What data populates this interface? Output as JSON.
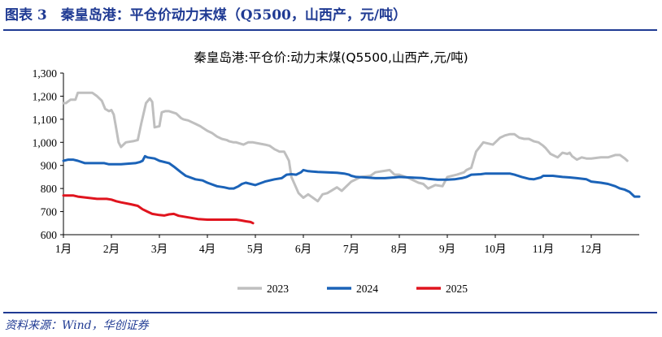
{
  "figure": {
    "title": "图表 3　秦皇岛港：平仓价动力末煤（Q5500，山西产，元/吨）",
    "source": "资料来源：Wind，华创证券"
  },
  "colors": {
    "accent": "#1f3a93",
    "s2023": "#bfbfbf",
    "s2024": "#1b63b8",
    "s2025": "#e0141e",
    "axis": "#000000"
  },
  "chart_data": {
    "type": "line",
    "title": "秦皇岛港:平仓价:动力末煤(Q5500,山西产,元/吨)",
    "xlabel": "",
    "ylabel": "",
    "x_unit": "month (1 = start of January)",
    "xlim": [
      1,
      13
    ],
    "ylim": [
      600,
      1300
    ],
    "y_ticks": [
      600,
      700,
      800,
      900,
      1000,
      1100,
      1200,
      1300
    ],
    "y_tick_labels": [
      "600",
      "700",
      "800",
      "900",
      "1,000",
      "1,100",
      "1,200",
      "1,300"
    ],
    "x_ticks": [
      1,
      2,
      3,
      4,
      5,
      6,
      7,
      8,
      9,
      10,
      11,
      12
    ],
    "x_tick_labels": [
      "1月",
      "2月",
      "3月",
      "4月",
      "5月",
      "6月",
      "7月",
      "8月",
      "9月",
      "10月",
      "11月",
      "12月"
    ],
    "grid": false,
    "legend_position": "bottom",
    "series": [
      {
        "name": "2023",
        "color": "#bfbfbf",
        "x": [
          1.0,
          1.05,
          1.15,
          1.25,
          1.3,
          1.45,
          1.6,
          1.7,
          1.8,
          1.87,
          1.95,
          2.0,
          2.05,
          2.1,
          2.15,
          2.2,
          2.3,
          2.45,
          2.55,
          2.62,
          2.72,
          2.8,
          2.85,
          2.9,
          3.0,
          3.05,
          3.12,
          3.2,
          3.35,
          3.45,
          3.5,
          3.6,
          3.75,
          3.85,
          4.0,
          4.1,
          4.2,
          4.3,
          4.4,
          4.45,
          4.55,
          4.6,
          4.75,
          4.85,
          4.95,
          5.2,
          5.3,
          5.4,
          5.45,
          5.5,
          5.6,
          5.65,
          5.7,
          5.75,
          5.9,
          6.0,
          6.1,
          6.2,
          6.3,
          6.4,
          6.5,
          6.7,
          6.8,
          7.0,
          7.2,
          7.4,
          7.5,
          7.8,
          7.9,
          8.0,
          8.2,
          8.4,
          8.5,
          8.6,
          8.75,
          8.9,
          9.0,
          9.2,
          9.35,
          9.4,
          9.5,
          9.6,
          9.75,
          9.95,
          10.0,
          10.1,
          10.2,
          10.3,
          10.4,
          10.5,
          10.6,
          10.7,
          10.8,
          10.9,
          11.0,
          11.05,
          11.15,
          11.3,
          11.4,
          11.5,
          11.55,
          11.6,
          11.7,
          11.8,
          11.9,
          12.0,
          12.2,
          12.35,
          12.5,
          12.6,
          12.7,
          12.75
        ],
        "values": [
          1170,
          1170,
          1185,
          1185,
          1215,
          1215,
          1215,
          1200,
          1180,
          1145,
          1135,
          1140,
          1120,
          1060,
          1000,
          980,
          1000,
          1005,
          1010,
          1080,
          1170,
          1190,
          1175,
          1065,
          1070,
          1130,
          1135,
          1135,
          1125,
          1105,
          1100,
          1095,
          1080,
          1070,
          1050,
          1040,
          1025,
          1015,
          1010,
          1005,
          1000,
          1000,
          990,
          1000,
          1000,
          990,
          985,
          970,
          965,
          960,
          960,
          940,
          920,
          850,
          780,
          760,
          775,
          760,
          745,
          775,
          780,
          805,
          790,
          830,
          850,
          855,
          870,
          880,
          860,
          860,
          845,
          825,
          820,
          800,
          815,
          810,
          850,
          860,
          870,
          880,
          890,
          960,
          1000,
          990,
          1000,
          1020,
          1030,
          1035,
          1035,
          1020,
          1015,
          1015,
          1005,
          1000,
          985,
          975,
          950,
          935,
          955,
          950,
          955,
          940,
          925,
          935,
          930,
          930,
          935,
          935,
          945,
          945,
          930,
          920
        ]
      },
      {
        "name": "2024",
        "color": "#1b63b8",
        "x": [
          1.0,
          1.1,
          1.2,
          1.3,
          1.45,
          1.7,
          1.85,
          1.95,
          2.0,
          2.2,
          2.5,
          2.6,
          2.65,
          2.7,
          2.75,
          2.9,
          3.0,
          3.2,
          3.3,
          3.45,
          3.55,
          3.75,
          3.9,
          4.0,
          4.2,
          4.35,
          4.45,
          4.55,
          4.65,
          4.72,
          4.8,
          5.0,
          5.2,
          5.3,
          5.4,
          5.55,
          5.65,
          5.75,
          5.85,
          5.95,
          6.0,
          6.1,
          6.3,
          6.5,
          6.7,
          6.85,
          6.95,
          7.0,
          7.1,
          7.3,
          7.5,
          7.7,
          7.9,
          8.0,
          8.2,
          8.45,
          8.5,
          8.6,
          8.8,
          9.0,
          9.15,
          9.3,
          9.4,
          9.5,
          9.7,
          9.8,
          10.0,
          10.3,
          10.4,
          10.55,
          10.7,
          10.8,
          10.95,
          11.0,
          11.2,
          11.4,
          11.55,
          11.7,
          11.9,
          12.0,
          12.2,
          12.35,
          12.5,
          12.6,
          12.7,
          12.8,
          12.9,
          13.0
        ],
        "values": [
          920,
          925,
          925,
          920,
          910,
          910,
          910,
          905,
          905,
          905,
          910,
          915,
          920,
          940,
          935,
          930,
          920,
          910,
          895,
          870,
          855,
          840,
          835,
          825,
          810,
          805,
          800,
          800,
          810,
          820,
          825,
          815,
          830,
          835,
          840,
          845,
          860,
          862,
          860,
          870,
          880,
          875,
          872,
          870,
          868,
          865,
          860,
          855,
          850,
          848,
          845,
          845,
          848,
          850,
          848,
          846,
          845,
          842,
          838,
          838,
          840,
          845,
          850,
          860,
          862,
          865,
          865,
          865,
          860,
          850,
          842,
          840,
          848,
          855,
          855,
          850,
          848,
          845,
          840,
          830,
          825,
          820,
          810,
          800,
          795,
          785,
          765,
          765
        ]
      },
      {
        "name": "2025",
        "color": "#e0141e",
        "x": [
          1.0,
          1.2,
          1.3,
          1.5,
          1.7,
          1.9,
          2.0,
          2.1,
          2.2,
          2.4,
          2.55,
          2.65,
          2.75,
          2.85,
          3.0,
          3.1,
          3.2,
          3.3,
          3.4,
          3.6,
          3.8,
          4.0,
          4.2,
          4.4,
          4.6,
          4.7,
          4.8,
          4.9,
          4.95
        ],
        "values": [
          770,
          770,
          765,
          760,
          755,
          755,
          752,
          745,
          740,
          732,
          725,
          710,
          700,
          690,
          685,
          683,
          688,
          690,
          682,
          675,
          668,
          665,
          665,
          665,
          665,
          662,
          658,
          655,
          650
        ]
      }
    ]
  }
}
